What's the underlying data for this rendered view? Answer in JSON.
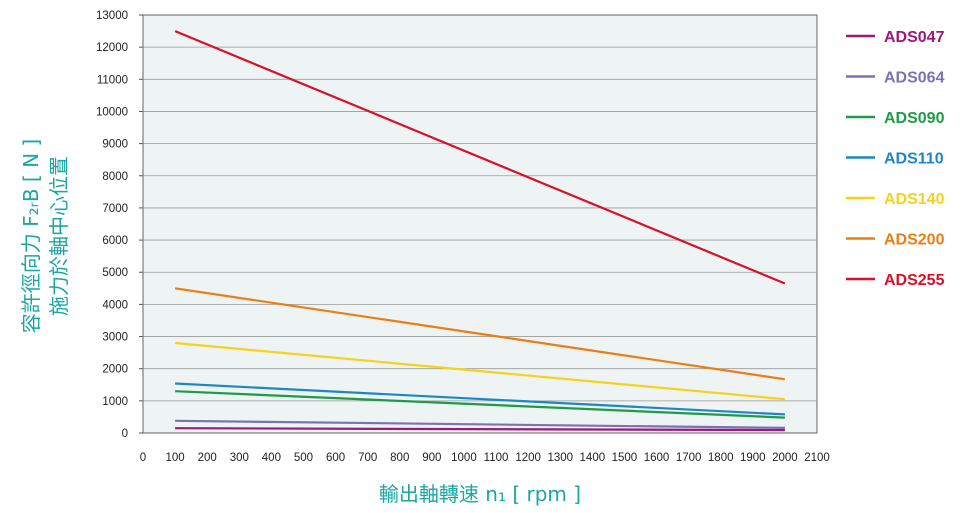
{
  "chart_data": {
    "type": "line",
    "xlabel": "輸出軸轉速 n₁ [ rpm ]",
    "ylabel_line1": "容許徑向力 F₂ᵣB [ N ]",
    "ylabel_line2": "施力於軸中心位置",
    "xlim": [
      0,
      2100
    ],
    "ylim": [
      0,
      13000
    ],
    "x_ticks": [
      0,
      100,
      200,
      300,
      400,
      500,
      600,
      700,
      800,
      900,
      1000,
      1100,
      1200,
      1300,
      1400,
      1500,
      1600,
      1700,
      1800,
      1900,
      2000,
      2100
    ],
    "y_ticks": [
      0,
      1000,
      2000,
      3000,
      4000,
      5000,
      6000,
      7000,
      8000,
      9000,
      10000,
      11000,
      12000,
      13000
    ],
    "grid": "horizontal",
    "legend_position": "right",
    "series": [
      {
        "name": "ADS047",
        "color": "#a0177c",
        "x": [
          100,
          2000
        ],
        "y": [
          150,
          90
        ]
      },
      {
        "name": "ADS064",
        "color": "#7b72b5",
        "x": [
          100,
          2000
        ],
        "y": [
          380,
          160
        ]
      },
      {
        "name": "ADS090",
        "color": "#1f9a48",
        "x": [
          100,
          2000
        ],
        "y": [
          1300,
          480
        ]
      },
      {
        "name": "ADS110",
        "color": "#1d86c8",
        "x": [
          100,
          2000
        ],
        "y": [
          1540,
          580
        ]
      },
      {
        "name": "ADS140",
        "color": "#f6d21d",
        "x": [
          100,
          2000
        ],
        "y": [
          2800,
          1050
        ]
      },
      {
        "name": "ADS200",
        "color": "#ec7d12",
        "x": [
          100,
          2000
        ],
        "y": [
          4500,
          1670
        ]
      },
      {
        "name": "ADS255",
        "color": "#d9102a",
        "x": [
          100,
          2000
        ],
        "y": [
          12500,
          4650
        ]
      }
    ]
  }
}
